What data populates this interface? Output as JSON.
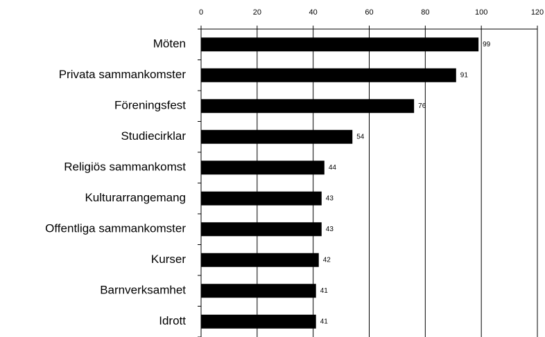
{
  "chart_data": {
    "type": "bar",
    "orientation": "horizontal",
    "categories": [
      "Möten",
      "Privata sammankomster",
      "Föreningsfest",
      "Studiecirklar",
      "Religiös sammankomst",
      "Kulturarrangemang",
      "Offentliga sammankomster",
      "Kurser",
      "Barnverksamhet",
      "Idrott"
    ],
    "values": [
      99,
      91,
      76,
      54,
      44,
      43,
      43,
      42,
      41,
      41
    ],
    "color": "#000000",
    "xlim": [
      0,
      120
    ],
    "xticks": [
      0,
      20,
      40,
      60,
      80,
      100,
      120
    ],
    "grid": true
  }
}
